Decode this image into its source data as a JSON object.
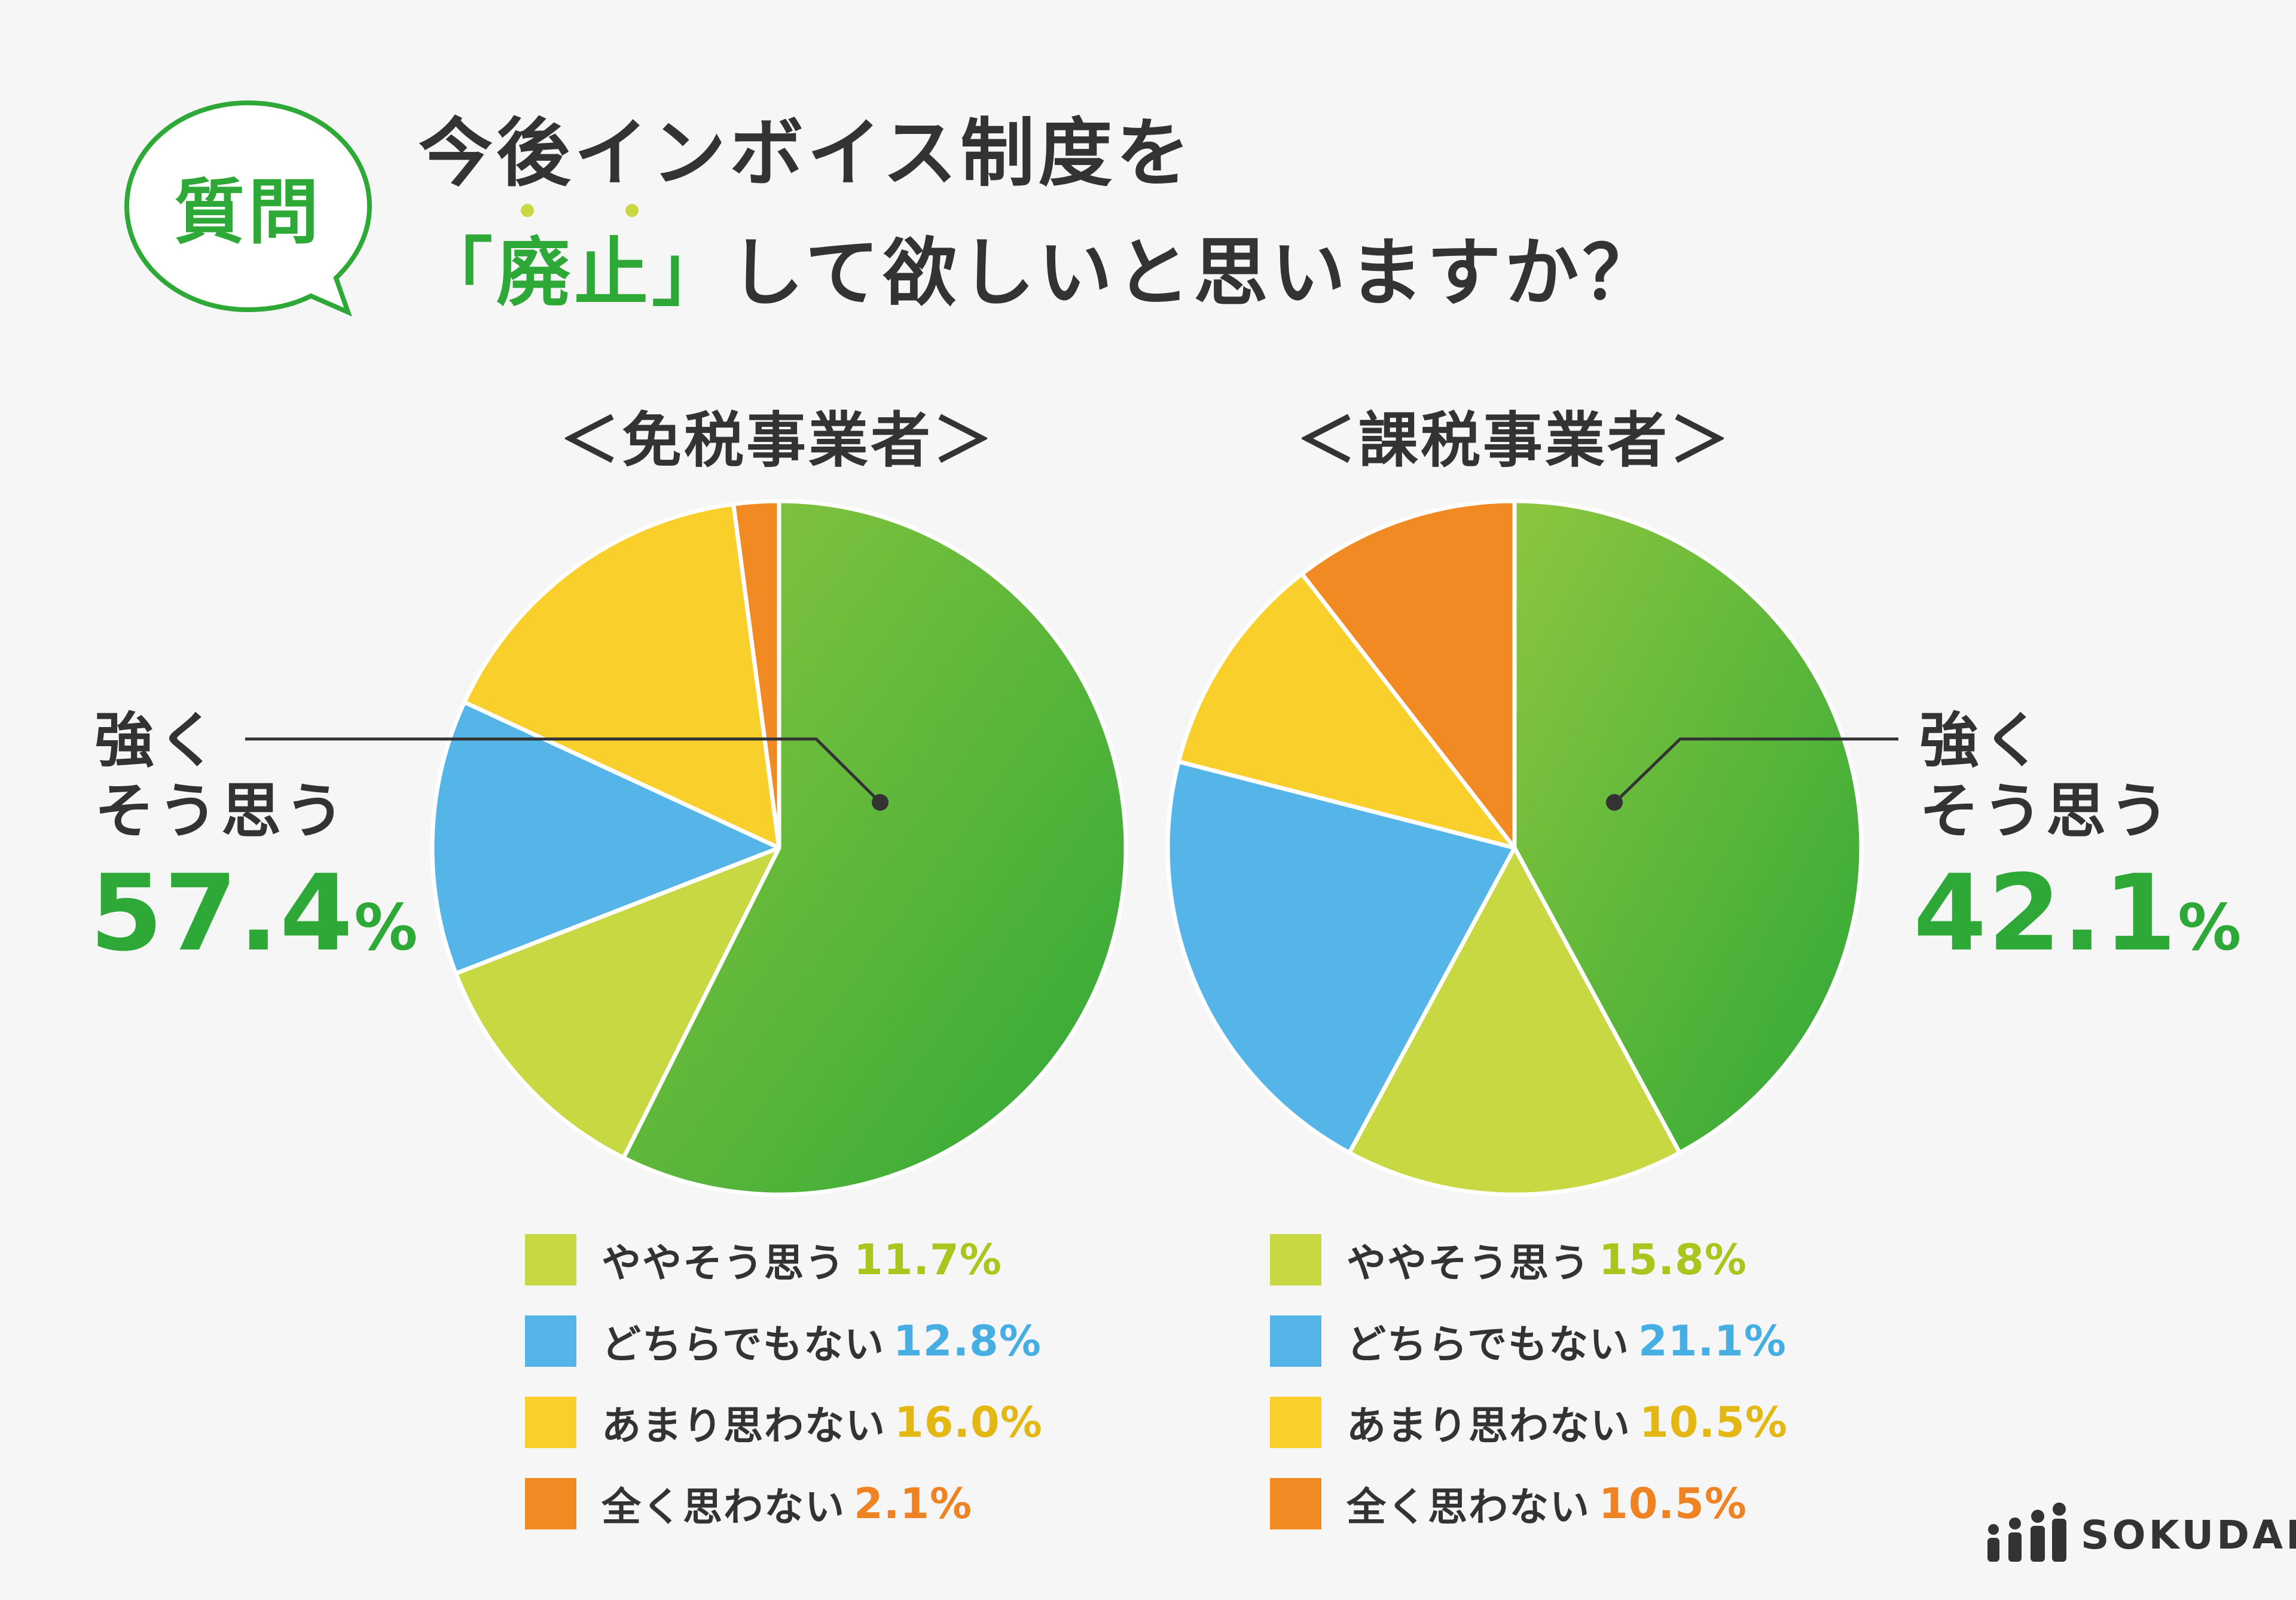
{
  "question_badge": {
    "label": "質問"
  },
  "title": {
    "line1": "今後インボイス制度を",
    "open_bracket": "「",
    "emphasis": "廃止",
    "close_bracket": "」",
    "rest": "して欲しいと思いますか？"
  },
  "colors": {
    "strongly": "#2ea836",
    "strongly_light": "#8dc63f",
    "somewhat": "#c8d843",
    "neutral": "#55b5e8",
    "not_really": "#f8cf2b",
    "not_at_all": "#f28a23",
    "somewhat_text": "#a9c61f",
    "neutral_text": "#46aee3",
    "not_really_text": "#e4b814",
    "not_at_all_text": "#ef8324"
  },
  "chart_data": [
    {
      "type": "pie",
      "title": "＜免税事業者＞",
      "unit": "%",
      "series": [
        {
          "key": "strongly",
          "name": "強くそう思う",
          "value": 57.4
        },
        {
          "key": "somewhat",
          "name": "ややそう思う",
          "value": 11.7
        },
        {
          "key": "neutral",
          "name": "どちらでもない",
          "value": 12.8
        },
        {
          "key": "not_really",
          "name": "あまり思わない",
          "value": 16.0
        },
        {
          "key": "not_at_all",
          "name": "全く思わない",
          "value": 2.1
        }
      ],
      "callout": {
        "label_line1": "強く",
        "label_line2": "そう思う",
        "value": "57.4",
        "unit": "%"
      },
      "legend": [
        {
          "key": "somewhat",
          "label": "ややそう思う",
          "value_text": "11.7%"
        },
        {
          "key": "neutral",
          "label": "どちらでもない",
          "value_text": "12.8%"
        },
        {
          "key": "not_really",
          "label": "あまり思わない",
          "value_text": "16.0%"
        },
        {
          "key": "not_at_all",
          "label": "全く思わない",
          "value_text": "2.1%"
        }
      ]
    },
    {
      "type": "pie",
      "title": "＜課税事業者＞",
      "unit": "%",
      "series": [
        {
          "key": "strongly",
          "name": "強くそう思う",
          "value": 42.1
        },
        {
          "key": "somewhat",
          "name": "ややそう思う",
          "value": 15.8
        },
        {
          "key": "neutral",
          "name": "どちらでもない",
          "value": 21.1
        },
        {
          "key": "not_really",
          "name": "あまり思わない",
          "value": 10.5
        },
        {
          "key": "not_at_all",
          "name": "全く思わない",
          "value": 10.5
        }
      ],
      "callout": {
        "label_line1": "強く",
        "label_line2": "そう思う",
        "value": "42.1",
        "unit": "%"
      },
      "legend": [
        {
          "key": "somewhat",
          "label": "ややそう思う",
          "value_text": "15.8%"
        },
        {
          "key": "neutral",
          "label": "どちらでもない",
          "value_text": "21.1%"
        },
        {
          "key": "not_really",
          "label": "あまり思わない",
          "value_text": "10.5%"
        },
        {
          "key": "not_at_all",
          "label": "全く思わない",
          "value_text": "10.5%"
        }
      ]
    }
  ],
  "brand": {
    "name": "SOKUDAN"
  }
}
